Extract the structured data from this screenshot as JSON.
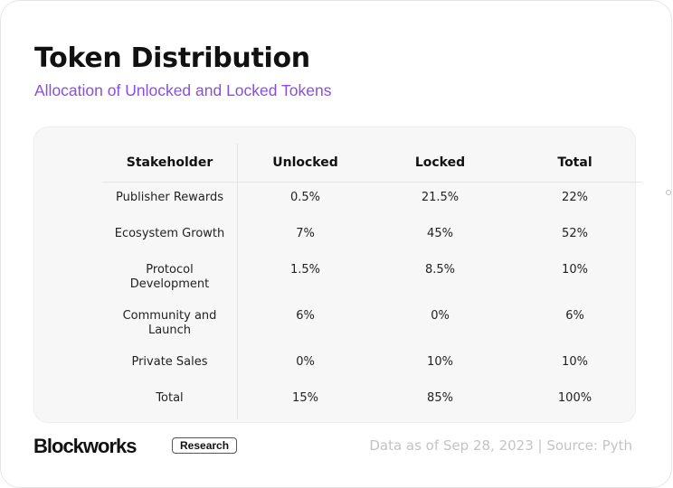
{
  "header": {
    "title": "Token Distribution",
    "subtitle": "Allocation of Unlocked and Locked Tokens"
  },
  "table": {
    "columns": [
      "Stakeholder",
      "Unlocked",
      "Locked",
      "Total"
    ],
    "rows": [
      [
        "Publisher Rewards",
        "0.5%",
        "21.5%",
        "22%"
      ],
      [
        "Ecosystem Growth",
        "7%",
        "45%",
        "52%"
      ],
      [
        "Protocol Development",
        "1.5%",
        "8.5%",
        "10%"
      ],
      [
        "Community and Launch",
        "6%",
        "0%",
        "6%"
      ],
      [
        "Private Sales",
        "0%",
        "10%",
        "10%"
      ],
      [
        "Total",
        "15%",
        "85%",
        "100%"
      ]
    ]
  },
  "footer": {
    "logo": "Blockworks",
    "badge": "Research",
    "source": "Data as of Sep 28, 2023 | Source: Pyth"
  },
  "colors": {
    "subtitle": "#8a4fe0",
    "table_bg": "#f7f7f7"
  }
}
